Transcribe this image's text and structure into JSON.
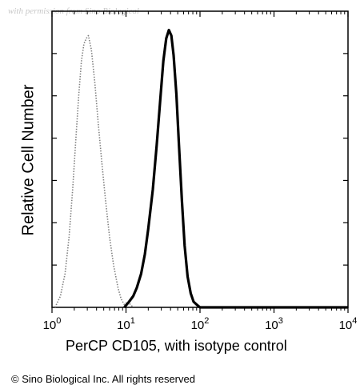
{
  "watermark": "with permission from Sino Biological",
  "copyright": "© Sino Biological Inc. All rights reserved",
  "chart_data": {
    "type": "area",
    "xlabel": "PerCP CD105, with isotype control",
    "ylabel": "Relative Cell Number",
    "xscale": "log",
    "xlim": [
      1,
      10000
    ],
    "ylim": [
      0,
      1
    ],
    "grid": false,
    "x_ticks": [
      {
        "value": 1,
        "base": "10",
        "exp": "0"
      },
      {
        "value": 10,
        "base": "10",
        "exp": "1"
      },
      {
        "value": 100,
        "base": "10",
        "exp": "2"
      },
      {
        "value": 1000,
        "base": "10",
        "exp": "3"
      },
      {
        "value": 10000,
        "base": "10",
        "exp": "4"
      }
    ],
    "series": [
      {
        "style": "dotted-isotype",
        "color": "#808080",
        "x": [
          1.1,
          1.3,
          1.5,
          1.7,
          1.9,
          2.1,
          2.3,
          2.5,
          2.7,
          2.9,
          3.1,
          3.4,
          3.8,
          4.2,
          4.7,
          5.3,
          6.0,
          6.8,
          7.8,
          8.6,
          9.5,
          10.5,
          11.5,
          12.5
        ],
        "y": [
          0.0,
          0.04,
          0.12,
          0.25,
          0.42,
          0.6,
          0.76,
          0.88,
          0.94,
          0.96,
          0.97,
          0.92,
          0.8,
          0.66,
          0.52,
          0.38,
          0.25,
          0.15,
          0.07,
          0.03,
          0.01,
          0.02,
          0.01,
          0.0
        ]
      },
      {
        "style": "solid-stained",
        "color": "#000000",
        "x": [
          9.5,
          11,
          12.5,
          14,
          16,
          18,
          20,
          23,
          26,
          29,
          32,
          35,
          38,
          41,
          44,
          48,
          52,
          57,
          62,
          68,
          75,
          82,
          90,
          100,
          200,
          1000,
          10000
        ],
        "y": [
          0.0,
          0.02,
          0.04,
          0.07,
          0.12,
          0.19,
          0.28,
          0.42,
          0.58,
          0.74,
          0.88,
          0.96,
          0.99,
          0.97,
          0.9,
          0.76,
          0.58,
          0.38,
          0.22,
          0.11,
          0.05,
          0.02,
          0.01,
          0.0,
          0.0,
          0.0,
          0.0
        ]
      }
    ]
  }
}
